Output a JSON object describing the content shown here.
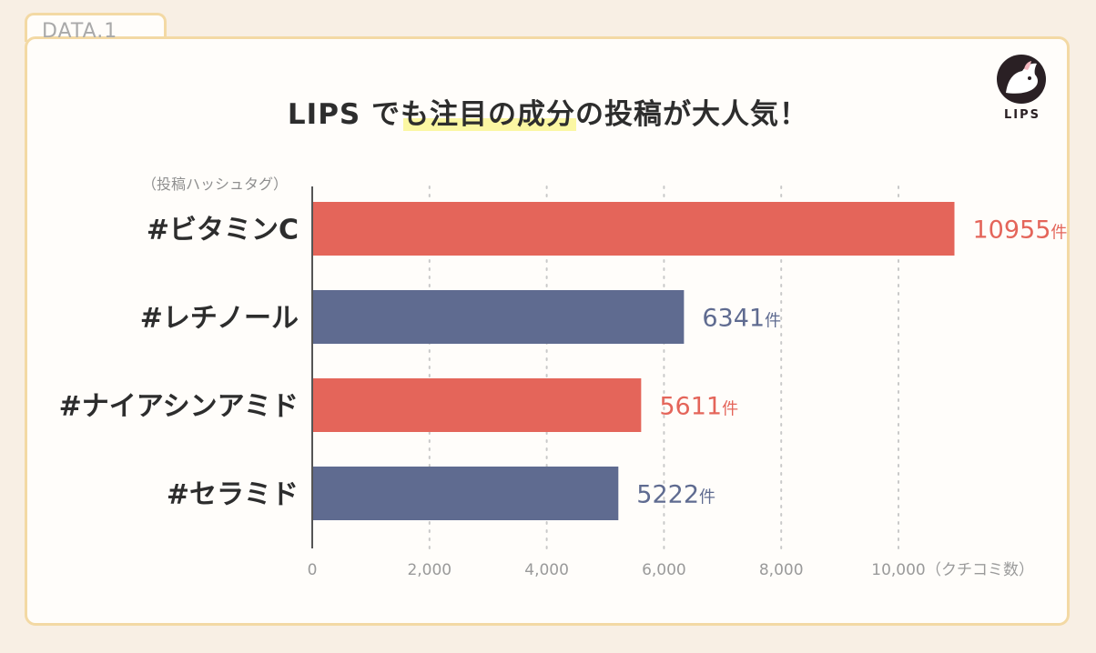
{
  "header": {
    "tab_label": "DATA.1",
    "title": "LIPS でも注目の成分の投稿が大人気！",
    "logo_label": "LIPS"
  },
  "colors": {
    "coral": "#e4655a",
    "navy": "#5f6b90",
    "axis": "#9a9a9a",
    "grid": "#c9c9c9"
  },
  "chart_data": {
    "type": "bar",
    "orientation": "horizontal",
    "category_axis_label": "（投稿ハッシュタグ）",
    "value_axis_label": "（クチコミ数）",
    "categories": [
      "#ビタミンC",
      "#レチノール",
      "#ナイアシンアミド",
      "#セラミド"
    ],
    "values": [
      10955,
      6341,
      5611,
      5222
    ],
    "value_labels": [
      "10955",
      "6341",
      "5611",
      "5222"
    ],
    "unit": "件",
    "bar_colors": [
      "#e4655a",
      "#5f6b90",
      "#e4655a",
      "#5f6b90"
    ],
    "xlim": [
      0,
      10000
    ],
    "ticks": [
      0,
      2000,
      4000,
      6000,
      8000,
      10000
    ],
    "tick_labels": [
      "0",
      "2,000",
      "4,000",
      "6,000",
      "8,000",
      "10,000"
    ],
    "grid": true
  }
}
